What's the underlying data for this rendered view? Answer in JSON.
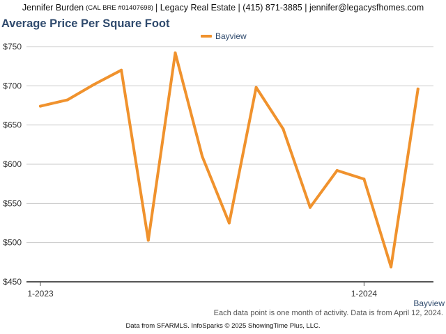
{
  "header": {
    "name": "Jennifer Burden",
    "license": "(CAL BRE #01407698)",
    "rest": "| Legacy Real Estate | (415) 871-3885 | jennifer@legacysfhomes.com"
  },
  "colors": {
    "line": "#f0922d",
    "title": "#2f4a6d",
    "grid": "#c8c8c8"
  },
  "chart_data": {
    "type": "line",
    "title": "Average Price Per Square Foot",
    "xlabel": "",
    "ylabel": "",
    "x": [
      "2023-01",
      "2023-02",
      "2023-03",
      "2023-04",
      "2023-05",
      "2023-06",
      "2023-07",
      "2023-08",
      "2023-09",
      "2023-10",
      "2023-11",
      "2023-12",
      "2024-01",
      "2024-02",
      "2024-03"
    ],
    "x_tick_labels": [
      {
        "x": "2023-01",
        "label": "1-2023"
      },
      {
        "x": "2024-01",
        "label": "1-2024"
      }
    ],
    "series": [
      {
        "name": "Bayview",
        "values": [
          674,
          682,
          702,
          720,
          503,
          742,
          610,
          525,
          698,
          645,
          545,
          592,
          581,
          469,
          696
        ]
      }
    ],
    "ylim": [
      450,
      750
    ],
    "y_ticks": [
      450,
      500,
      550,
      600,
      650,
      700,
      750
    ],
    "y_tick_labels": [
      "$450",
      "$500",
      "$550",
      "$600",
      "$650",
      "$700",
      "$750"
    ],
    "grid": true,
    "legend": "top-center"
  },
  "footer": {
    "series_label": "Bayview",
    "note": "Each data point is one month of activity. Data is from April 12, 2024.",
    "source": "Data from SFARMLS. InfoSparks © 2025 ShowingTime Plus, LLC."
  }
}
